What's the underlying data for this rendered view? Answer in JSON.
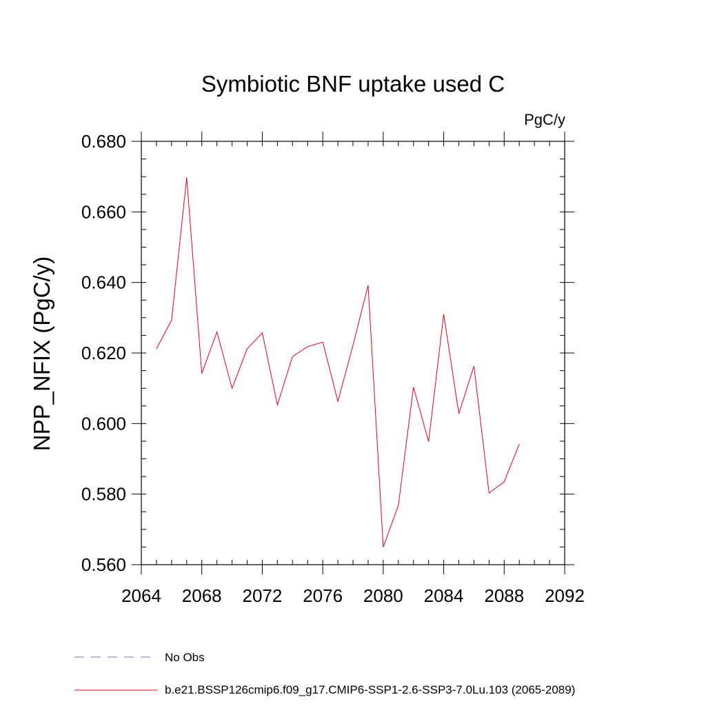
{
  "chart_data": {
    "type": "line",
    "title": "Symbiotic BNF uptake used C",
    "units": "PgC/y",
    "xlabel": "",
    "ylabel": "NPP_NFIX  (PgC/y)",
    "xlim": [
      2064,
      2092
    ],
    "ylim": [
      0.56,
      0.68
    ],
    "xticks": [
      "2064",
      "2068",
      "2072",
      "2076",
      "2080",
      "2084",
      "2088",
      "2092"
    ],
    "yticks": [
      "0.560",
      "0.580",
      "0.600",
      "0.620",
      "0.640",
      "0.660",
      "0.680"
    ],
    "x": [
      2065,
      2066,
      2067,
      2068,
      2069,
      2070,
      2071,
      2072,
      2073,
      2074,
      2075,
      2076,
      2077,
      2078,
      2079,
      2080,
      2081,
      2082,
      2083,
      2084,
      2085,
      2086,
      2087,
      2088,
      2089
    ],
    "series": [
      {
        "name": "b.e21.BSSP126cmip6.f09_g17.CMIP6-SSP1-2.6-SSP3-7.0Lu.103 (2065-2089)",
        "color": "#e8001c",
        "values": [
          0.6212,
          0.6293,
          0.6698,
          0.6142,
          0.626,
          0.61,
          0.6212,
          0.6257,
          0.6053,
          0.619,
          0.6218,
          0.6231,
          0.6063,
          0.6222,
          0.6392,
          0.565,
          0.5768,
          0.6103,
          0.5949,
          0.631,
          0.6028,
          0.6163,
          0.5803,
          0.5835,
          0.5942
        ]
      }
    ],
    "legend": [
      {
        "label": "No Obs",
        "style": "dashed",
        "color": "#7b6fb8"
      },
      {
        "label": "b.e21.BSSP126cmip6.f09_g17.CMIP6-SSP1-2.6-SSP3-7.0Lu.103 (2065-2089)",
        "style": "solid",
        "color": "#e8001c"
      }
    ]
  }
}
